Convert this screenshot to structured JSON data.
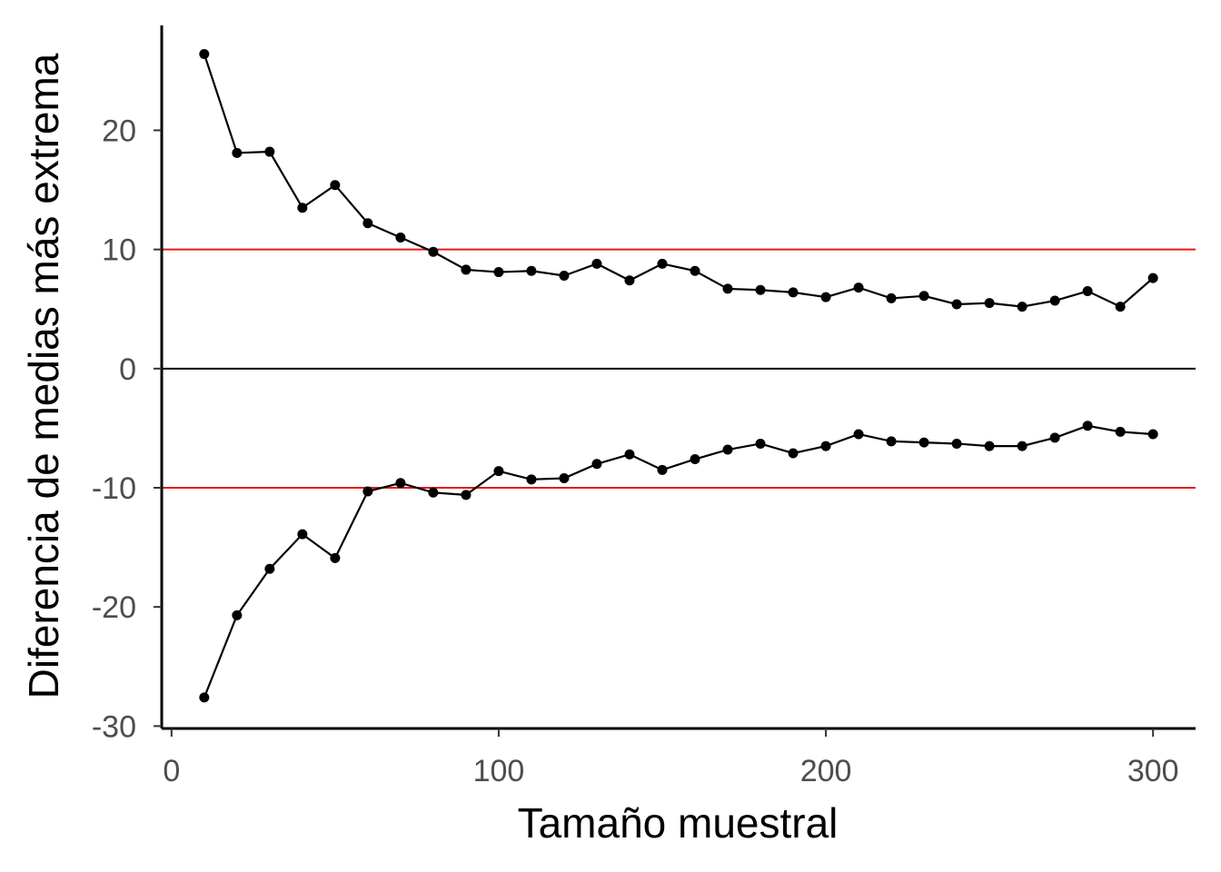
{
  "chart_data": {
    "type": "line",
    "title": "",
    "xlabel": "Tamaño muestral",
    "ylabel": "Diferencia de medias más extrema",
    "xlim": [
      -3,
      313
    ],
    "ylim": [
      -30.2,
      28.8
    ],
    "x_ticks": [
      0,
      100,
      200,
      300
    ],
    "x_tick_labels": [
      "0",
      "100",
      "200",
      "300"
    ],
    "y_ticks": [
      -30,
      -20,
      -10,
      0,
      10,
      20
    ],
    "y_tick_labels": [
      "-30",
      "-20",
      "-10",
      "0",
      "10",
      "20"
    ],
    "grid": false,
    "legend": "none",
    "reference_lines": [
      {
        "y": 10,
        "color": "#e41a1c"
      },
      {
        "y": -10,
        "color": "#e41a1c"
      },
      {
        "y": 0,
        "color": "#000000"
      }
    ],
    "x": [
      10,
      20,
      30,
      40,
      50,
      60,
      70,
      80,
      90,
      100,
      110,
      120,
      130,
      140,
      150,
      160,
      170,
      180,
      190,
      200,
      210,
      220,
      230,
      240,
      250,
      260,
      270,
      280,
      290,
      300
    ],
    "series": [
      {
        "values": [
          26.4,
          18.1,
          18.2,
          13.5,
          15.4,
          12.2,
          11.0,
          9.8,
          8.3,
          8.1,
          8.2,
          7.8,
          8.8,
          7.4,
          8.8,
          8.2,
          6.7,
          6.6,
          6.4,
          6.0,
          6.8,
          5.9,
          6.1,
          5.4,
          5.5,
          5.2,
          5.7,
          6.5,
          5.2,
          7.6
        ],
        "color": "#000000"
      },
      {
        "values": [
          -27.6,
          -20.7,
          -16.8,
          -13.9,
          -15.9,
          -10.3,
          -9.6,
          -10.4,
          -10.6,
          -8.6,
          -9.3,
          -9.2,
          -8.0,
          -7.2,
          -8.5,
          -7.6,
          -6.8,
          -6.3,
          -7.1,
          -6.5,
          -5.5,
          -6.1,
          -6.2,
          -6.3,
          -6.5,
          -6.5,
          -5.8,
          -4.8,
          -5.3,
          -5.5
        ],
        "color": "#000000"
      }
    ]
  }
}
